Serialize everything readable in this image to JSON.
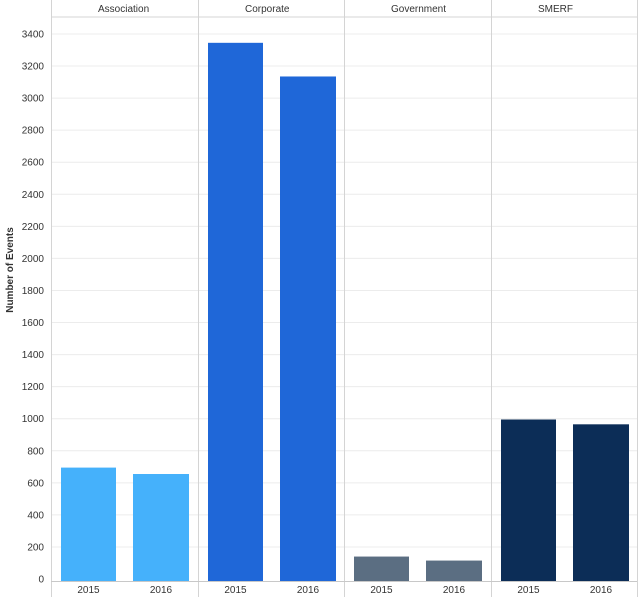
{
  "chart_data": {
    "type": "bar",
    "title": "",
    "xlabel": "",
    "ylabel": "Number of Events",
    "ylim": [
      0,
      3500
    ],
    "yticks": [
      0,
      200,
      400,
      600,
      800,
      1000,
      1200,
      1400,
      1600,
      1800,
      2000,
      2200,
      2400,
      2600,
      2800,
      3000,
      3200,
      3400
    ],
    "grid": true,
    "legend": "none",
    "panels": [
      {
        "name": "Association",
        "color": "#45b1fb",
        "categories": [
          "2015",
          "2016"
        ],
        "values": [
          695,
          655
        ]
      },
      {
        "name": "Corporate",
        "color": "#1f67d8",
        "categories": [
          "2015",
          "2016"
        ],
        "values": [
          3345,
          3135
        ]
      },
      {
        "name": "Government",
        "color": "#5b6e82",
        "categories": [
          "2015",
          "2016"
        ],
        "values": [
          140,
          115
        ]
      },
      {
        "name": "SMERF",
        "color": "#0c2d57",
        "categories": [
          "2015",
          "2016"
        ],
        "values": [
          995,
          965
        ]
      }
    ]
  }
}
